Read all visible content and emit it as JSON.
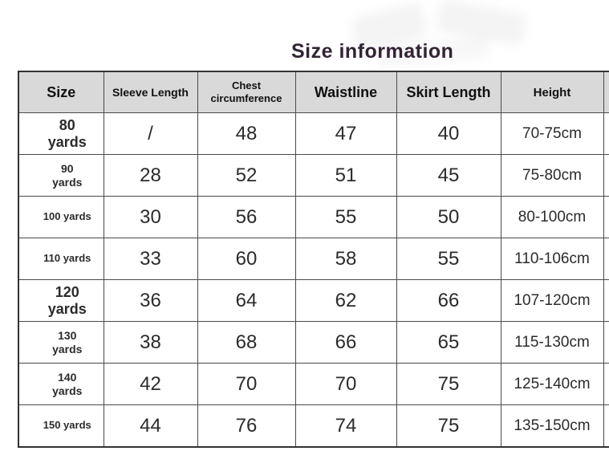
{
  "title": "Size information",
  "colors": {
    "title_text": "#332336",
    "header_background": "#d9d9d9",
    "border": "#4a4a4a",
    "body_text": "#2b2b2b"
  },
  "table": {
    "headers": [
      "Size",
      "Sleeve Length",
      "Chest circumference",
      "Waistline",
      "Skirt Length",
      "Height"
    ],
    "rows": [
      {
        "size": "80\nyards",
        "sleeve": "/",
        "chest": "48",
        "waist": "47",
        "skirt": "40",
        "height": "70-75cm"
      },
      {
        "size": "90\nyards",
        "sleeve": "28",
        "chest": "52",
        "waist": "51",
        "skirt": "45",
        "height": "75-80cm"
      },
      {
        "size": "100 yards",
        "sleeve": "30",
        "chest": "56",
        "waist": "55",
        "skirt": "50",
        "height": "80-100cm"
      },
      {
        "size": "110 yards",
        "sleeve": "33",
        "chest": "60",
        "waist": "58",
        "skirt": "55",
        "height": "110-106cm"
      },
      {
        "size": "120\nyards",
        "sleeve": "36",
        "chest": "64",
        "waist": "62",
        "skirt": "66",
        "height": "107-120cm"
      },
      {
        "size": "130\nyards",
        "sleeve": "38",
        "chest": "68",
        "waist": "66",
        "skirt": "65",
        "height": "115-130cm"
      },
      {
        "size": "140\nyards",
        "sleeve": "42",
        "chest": "70",
        "waist": "70",
        "skirt": "75",
        "height": "125-140cm"
      },
      {
        "size": "150 yards",
        "sleeve": "44",
        "chest": "76",
        "waist": "74",
        "skirt": "75",
        "height": "135-150cm"
      }
    ]
  }
}
